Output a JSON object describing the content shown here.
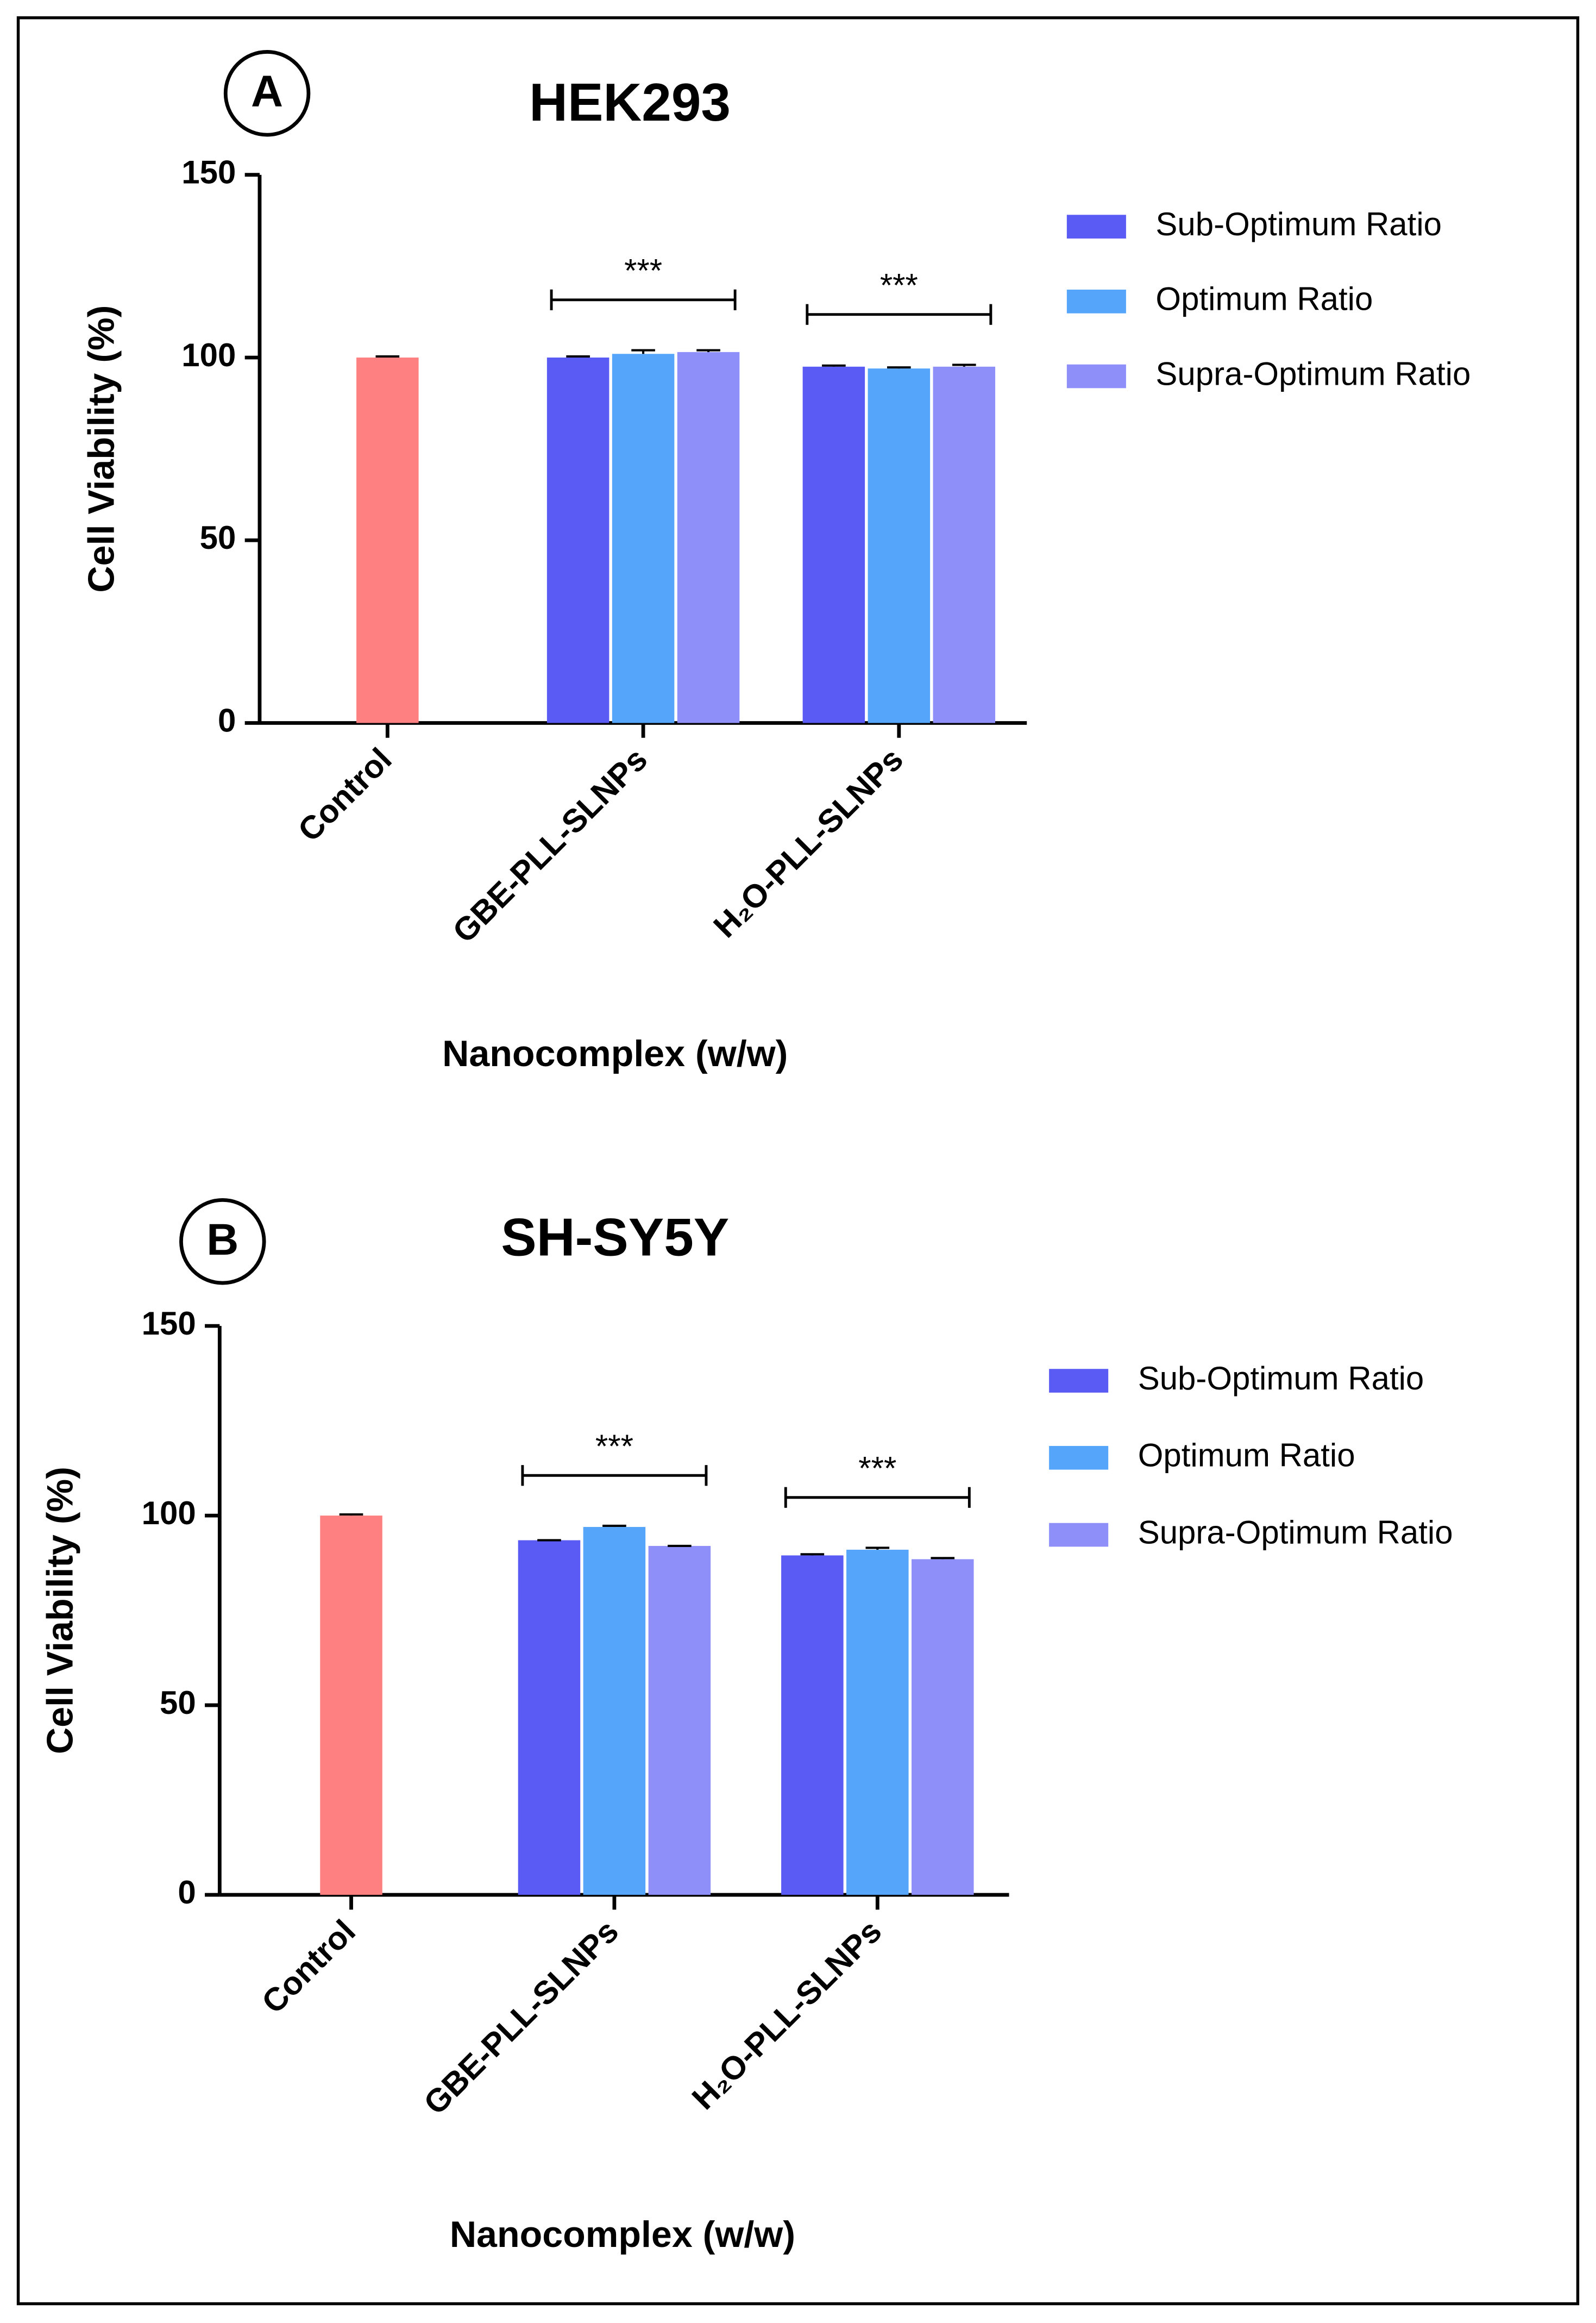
{
  "chart_data": [
    {
      "type": "bar",
      "panel": "A",
      "title": "HEK293",
      "ylabel": "Cell Viability (%)",
      "xlabel": "Nanocomplex (w/w)",
      "categories": [
        "Control",
        "GBE-PLL-SLNPs",
        "H₂O-PLL-SLNPs"
      ],
      "control_value": 100,
      "control_error": 0.3,
      "control_color": "#ff8080",
      "series": [
        {
          "name": "Sub-Optimum Ratio",
          "color": "#5a5af5",
          "values": [
            null,
            100,
            97.5
          ],
          "errors": [
            null,
            0.3,
            0.3
          ]
        },
        {
          "name": "Optimum Ratio",
          "color": "#55a5fa",
          "values": [
            null,
            101,
            97
          ],
          "errors": [
            null,
            1,
            0.3
          ]
        },
        {
          "name": "Supra-Optimum Ratio",
          "color": "#8f8ffa",
          "values": [
            null,
            101.5,
            97.5
          ],
          "errors": [
            null,
            0.5,
            0.5
          ]
        }
      ],
      "significance": [
        null,
        "***",
        "***"
      ],
      "ylim": [
        0,
        150
      ],
      "yticks": [
        0,
        50,
        100,
        150
      ],
      "legend": "right"
    },
    {
      "type": "bar",
      "panel": "B",
      "title": "SH-SY5Y",
      "ylabel": "Cell Viability (%)",
      "xlabel": "Nanocomplex (w/w)",
      "categories": [
        "Control",
        "GBE-PLL-SLNPs",
        "H₂O-PLL-SLNPs"
      ],
      "control_value": 100,
      "control_error": 0.3,
      "control_color": "#ff8080",
      "series": [
        {
          "name": "Sub-Optimum Ratio",
          "color": "#5a5af5",
          "values": [
            null,
            93.5,
            89.5
          ],
          "errors": [
            null,
            0,
            0.3
          ]
        },
        {
          "name": "Optimum Ratio",
          "color": "#55a5fa",
          "values": [
            null,
            97,
            91
          ],
          "errors": [
            null,
            0.3,
            0.5
          ]
        },
        {
          "name": "Supra-Optimum Ratio",
          "color": "#8f8ffa",
          "values": [
            null,
            92,
            88.5
          ],
          "errors": [
            null,
            0,
            0.3
          ]
        }
      ],
      "significance": [
        null,
        "***",
        "***"
      ],
      "ylim": [
        0,
        150
      ],
      "yticks": [
        0,
        50,
        100,
        150
      ],
      "legend": "right"
    }
  ]
}
